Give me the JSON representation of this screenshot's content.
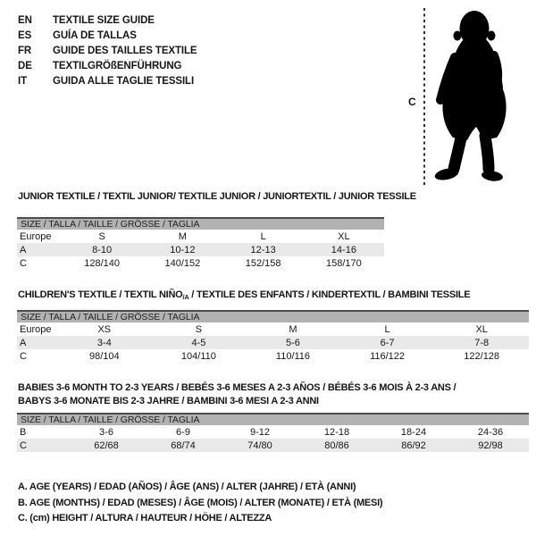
{
  "colors": {
    "header_bar": "#b2b2b2",
    "shaded_row": "#e9e9e9",
    "table_top_border": "#4c4c4c",
    "text": "#161616"
  },
  "language_guide": {
    "items": [
      {
        "code": "EN",
        "label": "TEXTILE SIZE GUIDE"
      },
      {
        "code": "ES",
        "label": "GUÍA DE TALLAS"
      },
      {
        "code": "FR",
        "label": "GUIDE DES TAILLES TEXTILE"
      },
      {
        "code": "DE",
        "label": "TEXTILGRÖßENFÜHRUNG"
      },
      {
        "code": "IT",
        "label": "GUIDA ALLE TAGLIE TESSILI"
      }
    ]
  },
  "figure": {
    "measure_label": "C",
    "icon": "toddler-silhouette"
  },
  "tables": [
    {
      "title_parts": [
        {
          "text": "JUNIOR TEXTILE / TEXTIL JUNIOR/ TEXTILE JUNIOR / JUNIORTEXTIL / JUNIOR TESSILE",
          "sub": false,
          "br": false
        }
      ],
      "size_header": "SIZE / TALLA / TAILLE / GRÖSSE / TAGLIA",
      "rows": [
        {
          "label": "Europe",
          "values": [
            "S",
            "M",
            "L",
            "XL"
          ],
          "shaded": false
        },
        {
          "label": "A",
          "values": [
            "8-10",
            "10-12",
            "12-13",
            "14-16"
          ],
          "shaded": true
        },
        {
          "label": "C",
          "values": [
            "128/140",
            "140/152",
            "152/158",
            "158/170"
          ],
          "shaded": false
        }
      ]
    },
    {
      "title_parts": [
        {
          "text": "CHILDREN'S TEXTILE / TEXTIL NIÑO",
          "sub": false,
          "br": false
        },
        {
          "text": "/A",
          "sub": true,
          "br": false
        },
        {
          "text": " / TEXTILE DES ENFANTS / KINDERTEXTIL / BAMBINI TESSILE",
          "sub": false,
          "br": false
        }
      ],
      "size_header": "SIZE / TALLA / TAILLE / GRÖSSE / TAGLIA",
      "rows": [
        {
          "label": "Europe",
          "values": [
            "XS",
            "S",
            "M",
            "L",
            "XL"
          ],
          "shaded": false
        },
        {
          "label": "A",
          "values": [
            "3-4",
            "4-5",
            "5-6",
            "6-7",
            "7-8"
          ],
          "shaded": true
        },
        {
          "label": "C",
          "values": [
            "98/104",
            "104/110",
            "110/116",
            "116/122",
            "122/128"
          ],
          "shaded": false
        }
      ]
    },
    {
      "title_parts": [
        {
          "text": "BABIES 3-6 MONTH TO 2-3 YEARS / BEBÉS 3-6 MESES A 2-3 AÑOS / BÉBÉS 3-6 MOIS À 2-3 ANS /",
          "sub": false,
          "br": true
        },
        {
          "text": "BABYS 3-6 MONATE BIS 2-3 JAHRE / BAMBINI 3-6 MESI A 2-3 ANNI",
          "sub": false,
          "br": false
        }
      ],
      "size_header": "SIZE / TALLA / TAILLE / GRÖSSE / TAGLIA",
      "rows": [
        {
          "label": "B",
          "values": [
            "3-6",
            "6-9",
            "9-12",
            "12-18",
            "18-24",
            "24-36"
          ],
          "shaded": false
        },
        {
          "label": "C",
          "values": [
            "62/68",
            "68/74",
            "74/80",
            "80/86",
            "86/92",
            "92/98"
          ],
          "shaded": true
        }
      ]
    }
  ],
  "footnotes": [
    "A. AGE (YEARS) / EDAD (AÑOS) / ÂGE (ANS) / ALTER (JAHRE) / ETÀ (ANNI)",
    "B. AGE (MONTHS) / EDAD (MESES) / ÂGE (MOIS) / ALTER (MONATE) / ETÀ (MESI)",
    "C. (cm) HEIGHT / ALTURA / HAUTEUR / HÖHE / ALTEZZA"
  ]
}
